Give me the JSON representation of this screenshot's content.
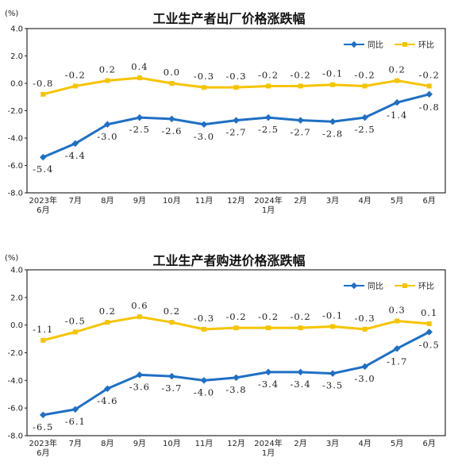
{
  "colors": {
    "yoy": "#1f6fc5",
    "mom": "#f5c400",
    "axis": "#222222",
    "frame": "#000000"
  },
  "chart_data": [
    {
      "type": "line",
      "title": "工业生产者出厂价格涨跌幅",
      "unit": "(%)",
      "ylim": [
        -8.0,
        4.0
      ],
      "yticks": [
        "4.0",
        "2.0",
        "0.0",
        "-2.0",
        "-4.0",
        "-6.0",
        "-8.0"
      ],
      "categories": [
        "2023年\n6月",
        "7月",
        "8月",
        "9月",
        "10月",
        "11月",
        "12月",
        "2024年\n1月",
        "2月",
        "3月",
        "4月",
        "5月",
        "6月"
      ],
      "grid": false,
      "legend": "top-right",
      "series": [
        {
          "name": "同比",
          "values": [
            -5.4,
            -4.4,
            -3.0,
            -2.5,
            -2.6,
            -3.0,
            -2.7,
            -2.5,
            -2.7,
            -2.8,
            -2.5,
            -1.4,
            -0.8
          ],
          "labels": [
            "-5.4",
            "-4.4",
            "-3.0",
            "-2.5",
            "-2.6",
            "-3.0",
            "-2.7",
            "-2.5",
            "-2.7",
            "-2.8",
            "-2.5",
            "-1.4",
            "-0.8"
          ]
        },
        {
          "name": "环比",
          "values": [
            -0.8,
            -0.2,
            0.2,
            0.4,
            0.0,
            -0.3,
            -0.3,
            -0.2,
            -0.2,
            -0.1,
            -0.2,
            0.2,
            -0.2
          ],
          "labels": [
            "-0.8",
            "-0.2",
            "0.2",
            "0.4",
            "0.0",
            "-0.3",
            "-0.3",
            "-0.2",
            "-0.2",
            "-0.1",
            "-0.2",
            "0.2",
            "-0.2"
          ]
        }
      ]
    },
    {
      "type": "line",
      "title": "工业生产者购进价格涨跌幅",
      "unit": "(%)",
      "ylim": [
        -8.0,
        4.0
      ],
      "yticks": [
        "4.0",
        "2.0",
        "0.0",
        "-2.0",
        "-4.0",
        "-6.0",
        "-8.0"
      ],
      "categories": [
        "2023年\n6月",
        "7月",
        "8月",
        "9月",
        "10月",
        "11月",
        "12月",
        "2024年\n1月",
        "2月",
        "3月",
        "4月",
        "5月",
        "6月"
      ],
      "grid": false,
      "legend": "top-right",
      "series": [
        {
          "name": "同比",
          "values": [
            -6.5,
            -6.1,
            -4.6,
            -3.6,
            -3.7,
            -4.0,
            -3.8,
            -3.4,
            -3.4,
            -3.5,
            -3.0,
            -1.7,
            -0.5
          ],
          "labels": [
            "-6.5",
            "-6.1",
            "-4.6",
            "-3.6",
            "-3.7",
            "-4.0",
            "-3.8",
            "-3.4",
            "-3.4",
            "-3.5",
            "-3.0",
            "-1.7",
            "-0.5"
          ]
        },
        {
          "name": "环比",
          "values": [
            -1.1,
            -0.5,
            0.2,
            0.6,
            0.2,
            -0.3,
            -0.2,
            -0.2,
            -0.2,
            -0.1,
            -0.3,
            0.3,
            0.1
          ],
          "labels": [
            "-1.1",
            "-0.5",
            "0.2",
            "0.6",
            "0.2",
            "-0.3",
            "-0.2",
            "-0.2",
            "-0.2",
            "-0.1",
            "-0.3",
            "0.3",
            "0.1"
          ]
        }
      ]
    }
  ]
}
